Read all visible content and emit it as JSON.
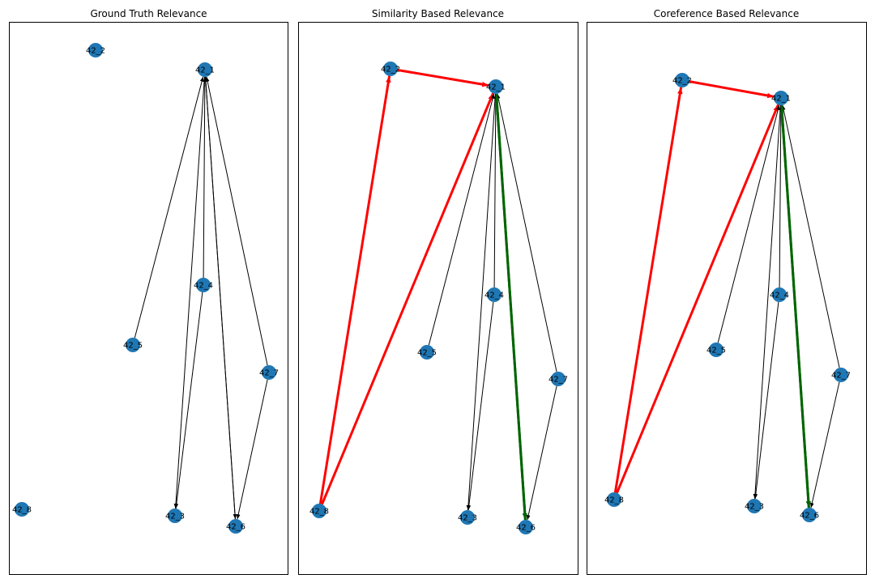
{
  "colors": {
    "node": "#1f77b4",
    "edge_default": "#000000",
    "edge_red": "#ff0000",
    "edge_green": "#006400"
  },
  "panels": [
    {
      "title": "Ground Truth Relevance",
      "nodes": [
        {
          "id": "42_1",
          "label": "42_1"
        },
        {
          "id": "42_2",
          "label": "42_2"
        },
        {
          "id": "42_3",
          "label": "42_3"
        },
        {
          "id": "42_4",
          "label": "42_4"
        },
        {
          "id": "42_5",
          "label": "42_5"
        },
        {
          "id": "42_6",
          "label": "42_6"
        },
        {
          "id": "42_7",
          "label": "42_7"
        },
        {
          "id": "42_8",
          "label": "42_8"
        }
      ],
      "edges": [
        {
          "from": "42_5",
          "to": "42_1",
          "color": "black"
        },
        {
          "from": "42_4",
          "to": "42_1",
          "color": "black"
        },
        {
          "from": "42_7",
          "to": "42_1",
          "color": "black"
        },
        {
          "from": "42_6",
          "to": "42_1",
          "color": "black"
        },
        {
          "from": "42_1",
          "to": "42_3",
          "color": "black"
        },
        {
          "from": "42_4",
          "to": "42_3",
          "color": "black"
        },
        {
          "from": "42_1",
          "to": "42_6",
          "color": "black"
        },
        {
          "from": "42_7",
          "to": "42_6",
          "color": "black"
        }
      ]
    },
    {
      "title": "Similarity Based Relevance",
      "nodes": [
        {
          "id": "42_1",
          "label": "42_1"
        },
        {
          "id": "42_2",
          "label": "42_2"
        },
        {
          "id": "42_3",
          "label": "42_3"
        },
        {
          "id": "42_4",
          "label": "42_4"
        },
        {
          "id": "42_5",
          "label": "42_5"
        },
        {
          "id": "42_6",
          "label": "42_6"
        },
        {
          "id": "42_7",
          "label": "42_7"
        },
        {
          "id": "42_8",
          "label": "42_8"
        }
      ],
      "edges": [
        {
          "from": "42_8",
          "to": "42_2",
          "color": "red"
        },
        {
          "from": "42_8",
          "to": "42_1",
          "color": "red"
        },
        {
          "from": "42_2",
          "to": "42_1",
          "color": "red"
        },
        {
          "from": "42_5",
          "to": "42_1",
          "color": "black"
        },
        {
          "from": "42_4",
          "to": "42_1",
          "color": "black"
        },
        {
          "from": "42_7",
          "to": "42_1",
          "color": "black"
        },
        {
          "from": "42_6",
          "to": "42_1",
          "color": "green"
        },
        {
          "from": "42_1",
          "to": "42_6",
          "color": "green"
        },
        {
          "from": "42_1",
          "to": "42_3",
          "color": "black"
        },
        {
          "from": "42_4",
          "to": "42_3",
          "color": "black"
        },
        {
          "from": "42_7",
          "to": "42_6",
          "color": "black"
        }
      ]
    },
    {
      "title": "Coreference Based Relevance",
      "nodes": [
        {
          "id": "42_1",
          "label": "42_1"
        },
        {
          "id": "42_2",
          "label": "42_2"
        },
        {
          "id": "42_3",
          "label": "42_3"
        },
        {
          "id": "42_4",
          "label": "42_4"
        },
        {
          "id": "42_5",
          "label": "42_5"
        },
        {
          "id": "42_6",
          "label": "42_6"
        },
        {
          "id": "42_7",
          "label": "42_7"
        },
        {
          "id": "42_8",
          "label": "42_8"
        }
      ],
      "edges": [
        {
          "from": "42_8",
          "to": "42_2",
          "color": "red"
        },
        {
          "from": "42_8",
          "to": "42_1",
          "color": "red"
        },
        {
          "from": "42_2",
          "to": "42_1",
          "color": "red"
        },
        {
          "from": "42_5",
          "to": "42_1",
          "color": "black"
        },
        {
          "from": "42_4",
          "to": "42_1",
          "color": "black"
        },
        {
          "from": "42_7",
          "to": "42_1",
          "color": "black"
        },
        {
          "from": "42_6",
          "to": "42_1",
          "color": "green"
        },
        {
          "from": "42_1",
          "to": "42_6",
          "color": "green"
        },
        {
          "from": "42_1",
          "to": "42_3",
          "color": "black"
        },
        {
          "from": "42_4",
          "to": "42_3",
          "color": "black"
        },
        {
          "from": "42_7",
          "to": "42_6",
          "color": "black"
        }
      ]
    }
  ]
}
